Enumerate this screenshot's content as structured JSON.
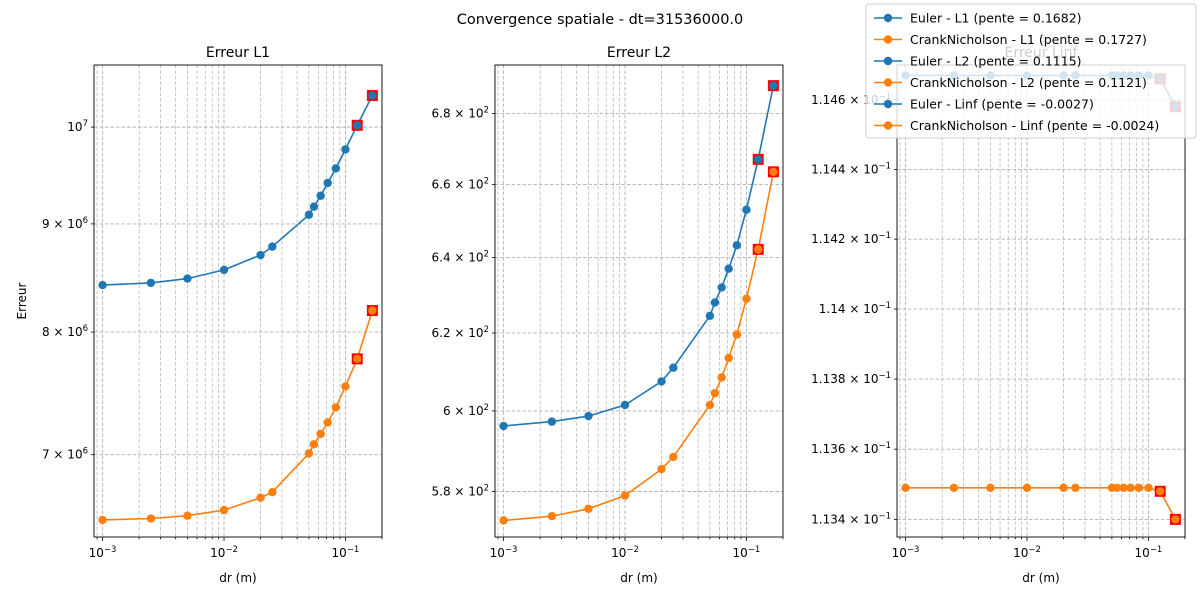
{
  "figure": {
    "suptitle": "Convergence spatiale - dt=31536000.0"
  },
  "legend": {
    "position": "top-right",
    "entries": [
      {
        "label": "Euler - L1 (pente = 0.1682)",
        "color": "#1f77b4"
      },
      {
        "label": "CrankNicholson - L1 (pente = 0.1727)",
        "color": "#ff7f0e"
      },
      {
        "label": "Euler - L2 (pente = 0.1115)",
        "color": "#1f77b4"
      },
      {
        "label": "CrankNicholson - L2 (pente = 0.1121)",
        "color": "#ff7f0e"
      },
      {
        "label": "Euler - Linf (pente = -0.0027)",
        "color": "#1f77b4"
      },
      {
        "label": "CrankNicholson - Linf (pente = -0.0024)",
        "color": "#ff7f0e"
      }
    ]
  },
  "chart_data": [
    {
      "type": "line",
      "title": "Erreur L1",
      "xlabel": "dr (m)",
      "ylabel": "Erreur",
      "xscale": "log",
      "yscale": "log",
      "xlim": [
        0.00085,
        0.2
      ],
      "ylim": [
        6400000,
        10700000
      ],
      "grid": true,
      "x_ticks": [
        {
          "value": 0.001,
          "base": "10",
          "exp": "−3"
        },
        {
          "value": 0.01,
          "base": "10",
          "exp": "−2"
        },
        {
          "value": 0.1,
          "base": "10",
          "exp": "−1"
        }
      ],
      "y_ticks": [
        {
          "value": 7000000,
          "base": "7 × 10",
          "exp": "6"
        },
        {
          "value": 8000000,
          "base": "8 × 10",
          "exp": "6"
        },
        {
          "value": 9000000,
          "base": "9 × 10",
          "exp": "6"
        },
        {
          "value": 10000000,
          "base": "10",
          "exp": "7"
        }
      ],
      "x": [
        0.001,
        0.0025,
        0.005,
        0.01,
        0.02,
        0.025,
        0.05,
        0.055,
        0.0625,
        0.0714,
        0.0833,
        0.1,
        0.125,
        0.1667
      ],
      "series": [
        {
          "color": "#1f77b4",
          "values": [
            8420000,
            8440000,
            8480000,
            8560000,
            8700000,
            8780000,
            9090000,
            9170000,
            9280000,
            9410000,
            9560000,
            9760000,
            10020000,
            10350000
          ]
        },
        {
          "color": "#ff7f0e",
          "values": [
            6520000,
            6530000,
            6550000,
            6590000,
            6680000,
            6720000,
            7010000,
            7080000,
            7160000,
            7250000,
            7370000,
            7540000,
            7770000,
            8190000
          ]
        }
      ],
      "highlights": [
        {
          "x": 0.125,
          "y": 10020000
        },
        {
          "x": 0.1667,
          "y": 10350000
        },
        {
          "x": 0.125,
          "y": 7770000
        },
        {
          "x": 0.1667,
          "y": 8190000
        }
      ]
    },
    {
      "type": "line",
      "title": "Erreur L2",
      "xlabel": "dr (m)",
      "ylabel": "",
      "xscale": "log",
      "yscale": "log",
      "xlim": [
        0.00085,
        0.2
      ],
      "ylim": [
        569,
        694
      ],
      "grid": true,
      "x_ticks": [
        {
          "value": 0.001,
          "base": "10",
          "exp": "−3"
        },
        {
          "value": 0.01,
          "base": "10",
          "exp": "−2"
        },
        {
          "value": 0.1,
          "base": "10",
          "exp": "−1"
        }
      ],
      "y_ticks": [
        {
          "value": 580,
          "base": "5.8 × 10",
          "exp": "2"
        },
        {
          "value": 600,
          "base": "6 × 10",
          "exp": "2"
        },
        {
          "value": 620,
          "base": "6.2 × 10",
          "exp": "2"
        },
        {
          "value": 640,
          "base": "6.4 × 10",
          "exp": "2"
        },
        {
          "value": 660,
          "base": "6.6 × 10",
          "exp": "2"
        },
        {
          "value": 680,
          "base": "6.8 × 10",
          "exp": "2"
        }
      ],
      "x": [
        0.001,
        0.0025,
        0.005,
        0.01,
        0.02,
        0.025,
        0.05,
        0.055,
        0.0625,
        0.0714,
        0.0833,
        0.1,
        0.125,
        0.1667
      ],
      "series": [
        {
          "color": "#1f77b4",
          "values": [
            596.2,
            597.3,
            598.7,
            601.5,
            607.5,
            611.0,
            624.5,
            628.0,
            632.0,
            637.0,
            643.3,
            653.0,
            667.0,
            688.0
          ]
        },
        {
          "color": "#ff7f0e",
          "values": [
            573.0,
            574.0,
            575.8,
            579.0,
            585.5,
            588.5,
            601.5,
            604.5,
            608.5,
            613.5,
            619.6,
            629.0,
            642.2,
            663.5
          ]
        }
      ],
      "highlights": [
        {
          "x": 0.125,
          "y": 667.0
        },
        {
          "x": 0.1667,
          "y": 688.0
        },
        {
          "x": 0.125,
          "y": 642.2
        },
        {
          "x": 0.1667,
          "y": 663.5
        }
      ]
    },
    {
      "type": "line",
      "title": "Erreur Linf",
      "xlabel": "dr (m)",
      "ylabel": "",
      "xscale": "log",
      "yscale": "log",
      "xlim": [
        0.00085,
        0.2
      ],
      "ylim": [
        0.11335,
        0.1147
      ],
      "grid": true,
      "x_ticks": [
        {
          "value": 0.001,
          "base": "10",
          "exp": "−3"
        },
        {
          "value": 0.01,
          "base": "10",
          "exp": "−2"
        },
        {
          "value": 0.1,
          "base": "10",
          "exp": "−1"
        }
      ],
      "y_ticks": [
        {
          "value": 0.1134,
          "base": "1.134 × 10",
          "exp": "−1"
        },
        {
          "value": 0.1136,
          "base": "1.136 × 10",
          "exp": "−1"
        },
        {
          "value": 0.1138,
          "base": "1.138 × 10",
          "exp": "−1"
        },
        {
          "value": 0.114,
          "base": "1.14 × 10",
          "exp": "−1"
        },
        {
          "value": 0.1142,
          "base": "1.142 × 10",
          "exp": "−1"
        },
        {
          "value": 0.1144,
          "base": "1.144 × 10",
          "exp": "−1"
        },
        {
          "value": 0.1146,
          "base": "1.146 × 10",
          "exp": "−1"
        }
      ],
      "x": [
        0.001,
        0.0025,
        0.005,
        0.01,
        0.02,
        0.025,
        0.05,
        0.055,
        0.0625,
        0.0714,
        0.0833,
        0.1,
        0.125,
        0.1667
      ],
      "series": [
        {
          "color": "#1f77b4",
          "values": [
            0.11467,
            0.11467,
            0.11467,
            0.11467,
            0.11467,
            0.11467,
            0.11467,
            0.11467,
            0.11467,
            0.11467,
            0.11467,
            0.11467,
            0.11466,
            0.11458
          ]
        },
        {
          "color": "#ff7f0e",
          "values": [
            0.11349,
            0.11349,
            0.11349,
            0.11349,
            0.11349,
            0.11349,
            0.11349,
            0.11349,
            0.11349,
            0.11349,
            0.11349,
            0.11349,
            0.11348,
            0.1134
          ]
        }
      ],
      "highlights": [
        {
          "x": 0.125,
          "y": 0.11466
        },
        {
          "x": 0.1667,
          "y": 0.11458
        },
        {
          "x": 0.125,
          "y": 0.11348
        },
        {
          "x": 0.1667,
          "y": 0.1134
        }
      ]
    }
  ]
}
